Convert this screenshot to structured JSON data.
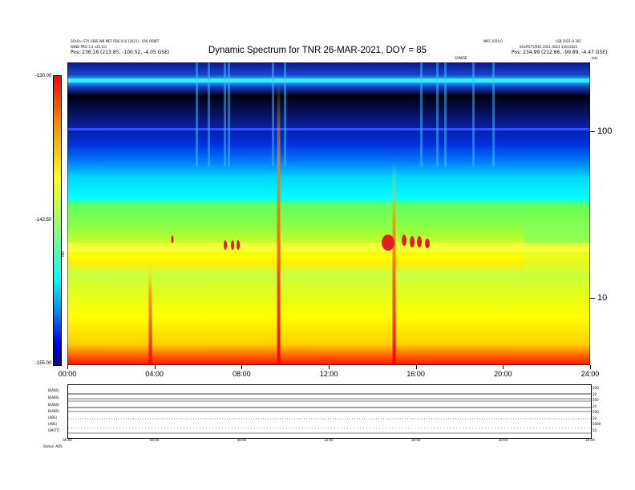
{
  "header": {
    "title": "Dynamic Spectrum for TNR 26-MAR-2021, DOY = 85",
    "left_line1": "SOLO> STX [OBS WB MEF PDS 0.0] (2021) - LRS ORBIT",
    "left_line2": "WIND PRO 3.3 v20.0.0",
    "left_line3_label": "Pos:",
    "left_line3_value": "236.16 (213.85, -100.52, -4.05 GSE)",
    "right_line1": "NPO 2020.0",
    "right_line2": "LSB 2021-0-301",
    "right_line3": "SOLPICTURES 2021-4021 3/20/2021",
    "right_line4_label": "Pos:",
    "right_line4_value": "234.99 (212.86, -99.89, -4.47 GSE)",
    "right_small_mid": "GSM/SE",
    "right_small_corner": "kHz"
  },
  "colorbar": {
    "label": "TNR",
    "top_label": "-130.00",
    "mid_label": "-142.50",
    "bottom_label": "-155.00",
    "colors": [
      "#000090",
      "#0000ff",
      "#0080ff",
      "#00ffff",
      "#80ff80",
      "#ffff00",
      "#ff8000",
      "#ff0000",
      "#b00000"
    ]
  },
  "chart_data": {
    "type": "heatmap",
    "title": "Dynamic Spectrum for TNR 26-MAR-2021, DOY = 85",
    "x_ticks": [
      "00:00",
      "04:00",
      "08:00",
      "12:00",
      "16:00",
      "20:00",
      "24:00"
    ],
    "y_scale": "log",
    "y_range_khz": [
      4,
      220
    ],
    "y_major_ticks": [
      10,
      100
    ],
    "intensity_range": [
      -155.0,
      -130.0
    ],
    "features": [
      {
        "name": "plasma line",
        "time_range_h": [
          0,
          24
        ],
        "freq_khz": [
          25,
          42
        ]
      },
      {
        "name": "burst",
        "time_h": 15.0,
        "freq_khz": [
          5,
          60
        ]
      },
      {
        "name": "burst",
        "time_h": 3.8,
        "freq_khz": [
          5,
          16
        ]
      },
      {
        "name": "burst",
        "time_h": 9.7,
        "freq_khz": [
          5,
          180
        ]
      }
    ]
  },
  "bottom_panels": {
    "labels": [
      "B(ABS)",
      "B(ABS)",
      "B(ABS)",
      "B(ABS)",
      "(ABS)",
      "(ABS)",
      "GM(TT)"
    ],
    "right_ticks": [
      "200",
      "20",
      "500",
      "20",
      "500",
      "20",
      "5000",
      "50"
    ],
    "x_ticks": [
      "00:00",
      "04:00",
      "08:00",
      "12:00",
      "16:00",
      "20:00",
      "24:00"
    ],
    "status_label": "Status:",
    "status_value": "ADS"
  }
}
